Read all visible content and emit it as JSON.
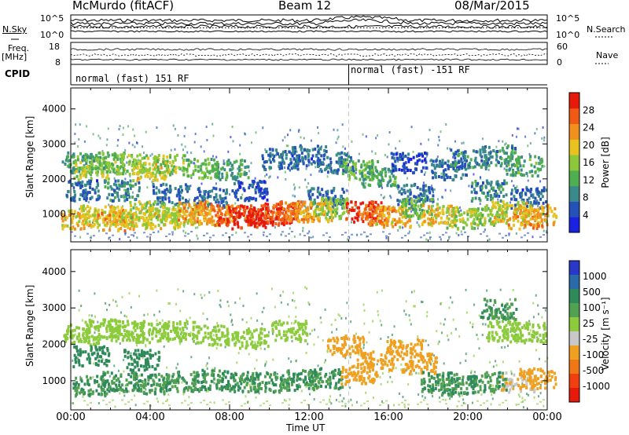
{
  "header": {
    "title": "McMurdo (fitACF)",
    "beam": "Beam 12",
    "date": "08/Mar/2015"
  },
  "left_labels": {
    "nsky": "N.Sky",
    "freq": "Freq.",
    "freq_unit": "[MHz]",
    "cpid": "CPID"
  },
  "right_labels": {
    "nsearch": "N.Search",
    "nave": "Nave"
  },
  "noise_panel": {
    "left_ticks": [
      "10^5",
      "10^0"
    ],
    "right_ticks": [
      "10^5",
      "10^0"
    ]
  },
  "freq_panel": {
    "left_ticks": [
      "18",
      "8"
    ],
    "right_ticks": [
      "60",
      "0"
    ]
  },
  "cpid_panel": {
    "segments": [
      "normal (fast) 151 RF",
      "normal (fast) -151 RF"
    ],
    "switch_time": 14.0
  },
  "x_axis": {
    "title": "Time UT",
    "ticks": [
      "00:00",
      "04:00",
      "08:00",
      "12:00",
      "16:00",
      "20:00",
      "00:00"
    ]
  },
  "chart_data": [
    {
      "type": "heatmap",
      "name": "power",
      "xlabel": "Time UT",
      "ylabel": "Slant Range [km]",
      "xlim": [
        0,
        24
      ],
      "ylim": [
        200,
        4600
      ],
      "yticks": [
        "1000",
        "2000",
        "3000",
        "4000"
      ],
      "colorbar": {
        "label": "Power [dB]",
        "ticks": [
          "4",
          "8",
          "12",
          "16",
          "20",
          "24",
          "28"
        ],
        "colors": [
          "#1a22e0",
          "#2452b8",
          "#3a8a8a",
          "#4fae4f",
          "#8cc83a",
          "#e8c21e",
          "#f0901e",
          "#f05a14",
          "#e61a0a"
        ]
      },
      "blobs": [
        {
          "t": 0.4,
          "r": 2500,
          "v": 12
        },
        {
          "t": 1.0,
          "r": 2300,
          "v": 16
        },
        {
          "t": 1.8,
          "r": 2500,
          "v": 14
        },
        {
          "t": 3.0,
          "r": 2450,
          "v": 16
        },
        {
          "t": 4.0,
          "r": 2250,
          "v": 18
        },
        {
          "t": 5.0,
          "r": 2450,
          "v": 16
        },
        {
          "t": 6.5,
          "r": 2350,
          "v": 14
        },
        {
          "t": 8.0,
          "r": 2300,
          "v": 12
        },
        {
          "t": 10.5,
          "r": 2600,
          "v": 8
        },
        {
          "t": 12.0,
          "r": 2700,
          "v": 8
        },
        {
          "t": 13.3,
          "r": 2500,
          "v": 8
        },
        {
          "t": 14.5,
          "r": 2300,
          "v": 14
        },
        {
          "t": 15.5,
          "r": 2100,
          "v": 12
        },
        {
          "t": 17.0,
          "r": 2500,
          "v": 6
        },
        {
          "t": 19.0,
          "r": 2300,
          "v": 8
        },
        {
          "t": 20.0,
          "r": 2600,
          "v": 10
        },
        {
          "t": 21.5,
          "r": 2700,
          "v": 10
        },
        {
          "t": 22.8,
          "r": 2400,
          "v": 12
        },
        {
          "t": 0.6,
          "r": 1700,
          "v": 8
        },
        {
          "t": 2.5,
          "r": 1700,
          "v": 10
        },
        {
          "t": 5.0,
          "r": 1600,
          "v": 8
        },
        {
          "t": 7.0,
          "r": 1500,
          "v": 8
        },
        {
          "t": 9.0,
          "r": 1700,
          "v": 6
        },
        {
          "t": 12.8,
          "r": 1500,
          "v": 8
        },
        {
          "t": 17.3,
          "r": 1600,
          "v": 8
        },
        {
          "t": 21.0,
          "r": 1700,
          "v": 10
        },
        {
          "t": 23.0,
          "r": 1500,
          "v": 8
        },
        {
          "t": 0.4,
          "r": 900,
          "v": 20
        },
        {
          "t": 1.3,
          "r": 1000,
          "v": 18
        },
        {
          "t": 2.2,
          "r": 850,
          "v": 22
        },
        {
          "t": 3.0,
          "r": 950,
          "v": 18
        },
        {
          "t": 3.8,
          "r": 1100,
          "v": 16
        },
        {
          "t": 4.6,
          "r": 900,
          "v": 18
        },
        {
          "t": 5.5,
          "r": 1000,
          "v": 18
        },
        {
          "t": 6.3,
          "r": 1100,
          "v": 22
        },
        {
          "t": 7.2,
          "r": 1000,
          "v": 22
        },
        {
          "t": 8.2,
          "r": 1000,
          "v": 26
        },
        {
          "t": 9.0,
          "r": 900,
          "v": 28
        },
        {
          "t": 9.8,
          "r": 1000,
          "v": 28
        },
        {
          "t": 10.6,
          "r": 1050,
          "v": 26
        },
        {
          "t": 11.4,
          "r": 1100,
          "v": 24
        },
        {
          "t": 12.2,
          "r": 1100,
          "v": 20
        },
        {
          "t": 13.0,
          "r": 1200,
          "v": 16
        },
        {
          "t": 14.7,
          "r": 1100,
          "v": 28
        },
        {
          "t": 15.4,
          "r": 1000,
          "v": 24
        },
        {
          "t": 16.2,
          "r": 950,
          "v": 20
        },
        {
          "t": 17.5,
          "r": 1200,
          "v": 14
        },
        {
          "t": 18.5,
          "r": 1000,
          "v": 20
        },
        {
          "t": 19.8,
          "r": 900,
          "v": 16
        },
        {
          "t": 21.0,
          "r": 1000,
          "v": 16
        },
        {
          "t": 22.0,
          "r": 1100,
          "v": 18
        },
        {
          "t": 22.8,
          "r": 900,
          "v": 22
        },
        {
          "t": 23.5,
          "r": 1000,
          "v": 20
        }
      ]
    },
    {
      "type": "heatmap",
      "name": "velocity",
      "xlabel": "Time UT",
      "ylabel": "Slant Range [km]",
      "xlim": [
        0,
        24
      ],
      "ylim": [
        200,
        4600
      ],
      "yticks": [
        "1000",
        "2000",
        "3000",
        "4000"
      ],
      "colorbar": {
        "label": "Velocity [m s⁻¹]",
        "ticks": [
          "1000",
          "500",
          "100",
          "25",
          "-25",
          "-100",
          "-500",
          "-1000"
        ],
        "colors": [
          "#2838c8",
          "#2a6aa8",
          "#2e8a5a",
          "#52a052",
          "#8ccc3c",
          "#c8c8c8",
          "#f0a020",
          "#f07814",
          "#f04010",
          "#e61a0a"
        ]
      },
      "blobs": [
        {
          "t": 0.5,
          "r": 2300,
          "v": 0
        },
        {
          "t": 1.5,
          "r": 2450,
          "v": 0
        },
        {
          "t": 2.8,
          "r": 2400,
          "v": 0
        },
        {
          "t": 4.0,
          "r": 2350,
          "v": 0
        },
        {
          "t": 5.5,
          "r": 2400,
          "v": 0
        },
        {
          "t": 7.0,
          "r": 2300,
          "v": 0
        },
        {
          "t": 9.0,
          "r": 2200,
          "v": 0
        },
        {
          "t": 11.0,
          "r": 2400,
          "v": 0
        },
        {
          "t": 21.8,
          "r": 2400,
          "v": 0
        },
        {
          "t": 23.0,
          "r": 2350,
          "v": 0
        },
        {
          "t": 1.0,
          "r": 1700,
          "v": 300
        },
        {
          "t": 3.5,
          "r": 1600,
          "v": 200
        },
        {
          "t": 1.0,
          "r": 900,
          "v": 100
        },
        {
          "t": 2.5,
          "r": 1000,
          "v": 100
        },
        {
          "t": 4.0,
          "r": 950,
          "v": 100
        },
        {
          "t": 5.5,
          "r": 1000,
          "v": 100
        },
        {
          "t": 7.0,
          "r": 1050,
          "v": 100
        },
        {
          "t": 8.5,
          "r": 1000,
          "v": 100
        },
        {
          "t": 10.0,
          "r": 1000,
          "v": 100
        },
        {
          "t": 11.5,
          "r": 1050,
          "v": 100
        },
        {
          "t": 12.8,
          "r": 1100,
          "v": 100
        },
        {
          "t": 14.5,
          "r": 1200,
          "v": -300
        },
        {
          "t": 15.3,
          "r": 1600,
          "v": -300
        },
        {
          "t": 13.8,
          "r": 2000,
          "v": -300
        },
        {
          "t": 16.8,
          "r": 1900,
          "v": -300
        },
        {
          "t": 17.5,
          "r": 1500,
          "v": -300
        },
        {
          "t": 18.5,
          "r": 1000,
          "v": 100
        },
        {
          "t": 19.5,
          "r": 900,
          "v": 100
        },
        {
          "t": 21.0,
          "r": 1000,
          "v": 100
        },
        {
          "t": 22.5,
          "r": 1000,
          "v": -100
        },
        {
          "t": 23.5,
          "r": 1100,
          "v": -300
        },
        {
          "t": 21.5,
          "r": 3000,
          "v": 100
        }
      ]
    }
  ]
}
